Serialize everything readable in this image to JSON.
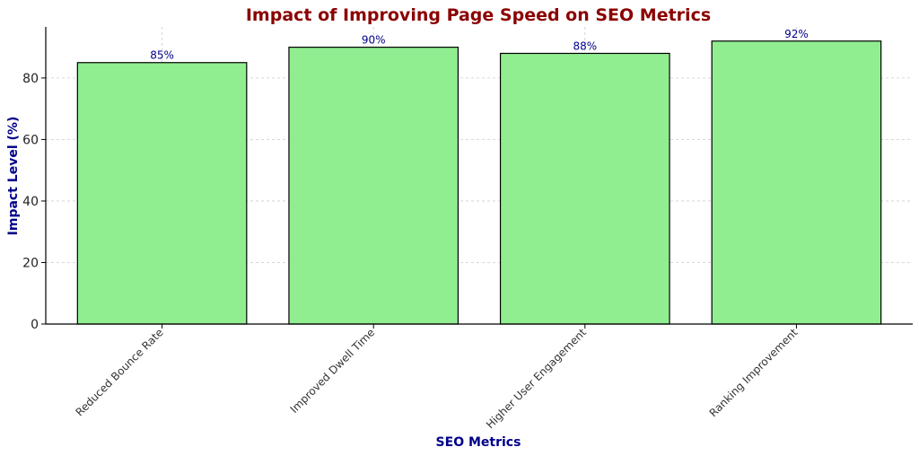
{
  "chart_data": {
    "type": "bar",
    "title": "Impact of Improving Page Speed on SEO Metrics",
    "xlabel": "SEO Metrics",
    "ylabel": "Impact Level (%)",
    "categories": [
      "Reduced Bounce Rate",
      "Improved Dwell Time",
      "Higher User Engagement",
      "Ranking Improvement"
    ],
    "values": [
      85,
      90,
      88,
      92
    ],
    "value_labels": [
      "85%",
      "90%",
      "88%",
      "92%"
    ],
    "ylim": [
      0,
      96.6
    ],
    "yticks": [
      0,
      20,
      40,
      60,
      80
    ],
    "grid": true,
    "colors": {
      "bar_fill": "#90ee90",
      "bar_edge": "#000000",
      "title": "#8b0000",
      "axis_label": "#00008b",
      "bar_label": "#00008b",
      "grid": "#cccccc"
    }
  }
}
